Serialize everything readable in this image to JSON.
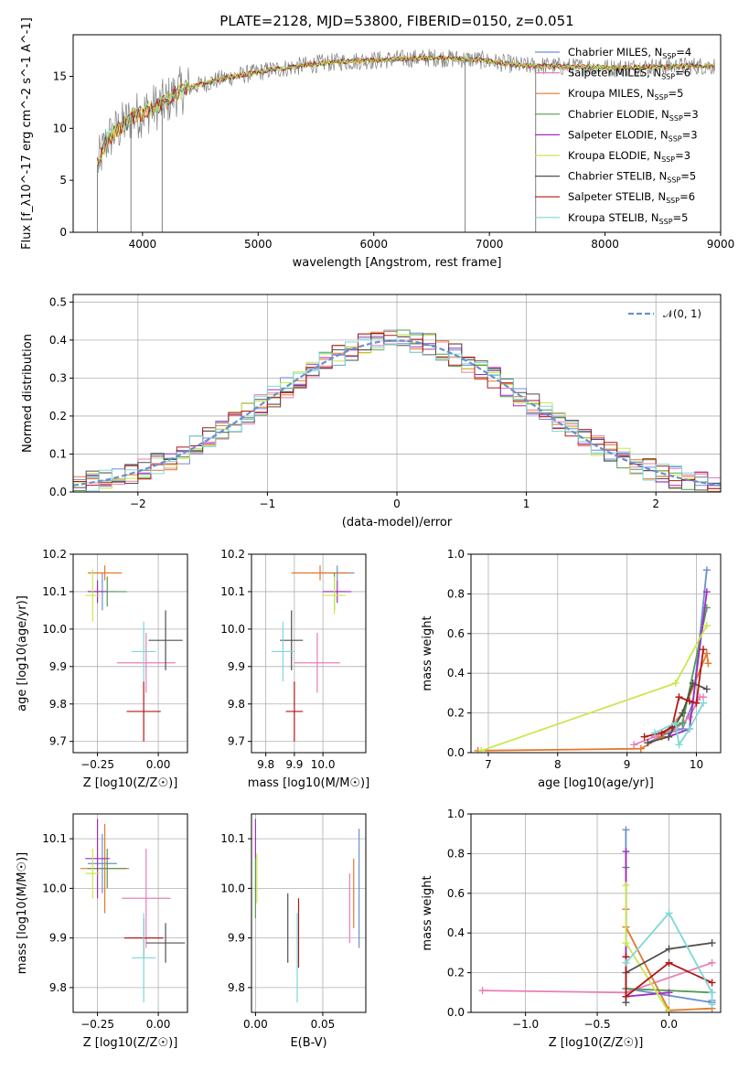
{
  "figure_title": "PLATE=2128, MJD=53800, FIBERID=0150, z=0.051",
  "colors": {
    "cm": "#6a8fd0",
    "sm": "#e87fb4",
    "km": "#e3782a",
    "ce": "#549a54",
    "se": "#a02cc0",
    "ke": "#c8e84e",
    "cs": "#505050",
    "ss": "#b01818",
    "ks": "#7dd8d8",
    "spec": "#808080",
    "grid": "#b0b0b0"
  },
  "chart_data": [
    {
      "id": "spectrum",
      "type": "line",
      "xlabel": "wavelength [Angstrom, rest frame]",
      "ylabel": "Flux [f_λ10^-17 erg cm^-2 s^-1 A^-1]",
      "xlim": [
        3400,
        9000
      ],
      "ylim": [
        0,
        19
      ],
      "xticks": [
        4000,
        5000,
        6000,
        7000,
        8000,
        9000
      ],
      "yticks": [
        0,
        5,
        10,
        15
      ],
      "grid": false,
      "legend_placement": "right",
      "legend": [
        {
          "label": "Chabrier MILES, N_SSP=4",
          "color": "cm"
        },
        {
          "label": "Salpeter MILES, N_SSP=6",
          "color": "sm"
        },
        {
          "label": "Kroupa MILES, N_SSP=5",
          "color": "km"
        },
        {
          "label": "Chabrier ELODIE, N_SSP=3",
          "color": "ce"
        },
        {
          "label": "Salpeter ELODIE, N_SSP=3",
          "color": "se"
        },
        {
          "label": "Kroupa ELODIE, N_SSP=3",
          "color": "ke"
        },
        {
          "label": "Chabrier STELIB, N_SSP=5",
          "color": "cs"
        },
        {
          "label": "Salpeter STELIB, N_SSP=6",
          "color": "ss"
        },
        {
          "label": "Kroupa STELIB, N_SSP=5",
          "color": "ks"
        }
      ],
      "continuum": {
        "x": [
          3610,
          3700,
          3800,
          3900,
          4000,
          4100,
          4200,
          4300,
          4500,
          4700,
          4900,
          5100,
          5300,
          5500,
          5700,
          5900,
          6100,
          6300,
          6500,
          6700,
          6900,
          7100,
          7300,
          7500,
          7700,
          7900,
          8100,
          8300,
          8500,
          8700,
          8950
        ],
        "y": [
          6.5,
          9,
          10,
          11,
          11.5,
          12,
          12.5,
          13.5,
          14.2,
          14.8,
          15.2,
          15.6,
          15.9,
          16.2,
          16.4,
          16.5,
          16.6,
          16.7,
          16.8,
          16.7,
          16.6,
          16.3,
          16.0,
          16.0,
          15.9,
          15.9,
          15.8,
          15.9,
          15.9,
          16.0,
          16.0
        ]
      }
    },
    {
      "id": "residuals",
      "type": "histogram",
      "xlabel": "(data-model)/error",
      "ylabel": "Normed distribution",
      "xlim": [
        -2.5,
        2.5
      ],
      "ylim": [
        0,
        0.52
      ],
      "xticks": [
        -2,
        -1,
        0,
        1,
        2
      ],
      "yticks": [
        0.0,
        0.1,
        0.2,
        0.3,
        0.4,
        0.5
      ],
      "grid": true,
      "legend_placement": "top-right",
      "legend": [
        {
          "label": "𝒩(0, 1)",
          "color": "cm",
          "dash": true
        }
      ],
      "bin_width": 0.1
    },
    {
      "id": "age_vs_Z",
      "type": "scatter",
      "xlabel": "Z [log10(Z/Z☉)]",
      "ylabel": "age [log10(age/yr)]",
      "xlim": [
        -0.35,
        0.12
      ],
      "ylim": [
        9.67,
        10.2
      ],
      "xticks": [
        -0.25,
        0.0
      ],
      "xtick_labels": [
        "−0.25",
        "0.00"
      ],
      "yticks": [
        9.7,
        9.8,
        9.9,
        10.0,
        10.1,
        10.2
      ],
      "grid": true,
      "points": [
        {
          "c": "cm",
          "x": -0.23,
          "y": 10.1,
          "xe": 0.06,
          "ye": 0.05
        },
        {
          "c": "sm",
          "x": -0.05,
          "y": 9.91,
          "xe": 0.12,
          "ye": 0.08
        },
        {
          "c": "km",
          "x": -0.22,
          "y": 10.15,
          "xe": 0.07,
          "ye": 0.02
        },
        {
          "c": "ce",
          "x": -0.21,
          "y": 10.1,
          "xe": 0.08,
          "ye": 0.04
        },
        {
          "c": "se",
          "x": -0.25,
          "y": 10.1,
          "xe": 0.04,
          "ye": 0.03
        },
        {
          "c": "ke",
          "x": -0.27,
          "y": 10.09,
          "xe": 0.03,
          "ye": 0.07
        },
        {
          "c": "cs",
          "x": 0.03,
          "y": 9.97,
          "xe": 0.07,
          "ye": 0.08
        },
        {
          "c": "ss",
          "x": -0.06,
          "y": 9.78,
          "xe": 0.07,
          "ye": 0.08
        },
        {
          "c": "ks",
          "x": -0.06,
          "y": 9.94,
          "xe": 0.05,
          "ye": 0.08
        }
      ]
    },
    {
      "id": "age_vs_mass",
      "type": "scatter",
      "xlabel": "mass [log10(M/M☉)]",
      "ylabel": "",
      "xlim": [
        9.75,
        10.15
      ],
      "ylim": [
        9.67,
        10.2
      ],
      "xticks": [
        9.8,
        9.9,
        10.0
      ],
      "xtick_labels": [
        "9.8",
        "9.9",
        "10.0"
      ],
      "yticks": [
        9.7,
        9.8,
        9.9,
        10.0,
        10.1,
        10.2
      ],
      "grid": true,
      "points": [
        {
          "c": "cm",
          "x": 10.05,
          "y": 10.15,
          "xe": 0.06,
          "ye": 0.02
        },
        {
          "c": "sm",
          "x": 9.98,
          "y": 9.91,
          "xe": 0.08,
          "ye": 0.08
        },
        {
          "c": "km",
          "x": 9.99,
          "y": 10.15,
          "xe": 0.1,
          "ye": 0.02
        },
        {
          "c": "ce",
          "x": 10.04,
          "y": 10.1,
          "xe": 0.04,
          "ye": 0.05
        },
        {
          "c": "se",
          "x": 10.05,
          "y": 10.1,
          "xe": 0.05,
          "ye": 0.03
        },
        {
          "c": "ke",
          "x": 10.04,
          "y": 10.09,
          "xe": 0.04,
          "ye": 0.05
        },
        {
          "c": "cs",
          "x": 9.89,
          "y": 9.97,
          "xe": 0.04,
          "ye": 0.08
        },
        {
          "c": "ss",
          "x": 9.9,
          "y": 9.78,
          "xe": 0.03,
          "ye": 0.08
        },
        {
          "c": "ks",
          "x": 9.86,
          "y": 9.94,
          "xe": 0.04,
          "ye": 0.08
        }
      ]
    },
    {
      "id": "weight_vs_age",
      "type": "line",
      "xlabel": "age  [log10(age/yr)]",
      "ylabel": "mass weight",
      "xlim": [
        6.75,
        10.35
      ],
      "ylim": [
        0,
        1
      ],
      "xticks": [
        7,
        8,
        9,
        10
      ],
      "yticks": [
        0.0,
        0.2,
        0.4,
        0.6,
        0.8,
        1.0
      ],
      "grid": true,
      "series": [
        {
          "c": "cm",
          "x": [
            9.3,
            9.6,
            9.8,
            9.95,
            10.15
          ],
          "y": [
            0.05,
            0.1,
            0.12,
            0.25,
            0.92
          ]
        },
        {
          "c": "sm",
          "x": [
            9.1,
            9.4,
            9.7,
            9.9,
            10.05,
            10.1
          ],
          "y": [
            0.04,
            0.08,
            0.12,
            0.18,
            0.28,
            0.28
          ]
        },
        {
          "c": "km",
          "x": [
            6.85,
            9.2,
            9.5,
            9.8,
            10.15,
            10.17
          ],
          "y": [
            0.01,
            0.02,
            0.08,
            0.2,
            0.5,
            0.45
          ]
        },
        {
          "c": "ce",
          "x": [
            9.5,
            9.8,
            10.15
          ],
          "y": [
            0.1,
            0.15,
            0.73
          ]
        },
        {
          "c": "se",
          "x": [
            9.6,
            9.9,
            10.15
          ],
          "y": [
            0.08,
            0.12,
            0.81
          ]
        },
        {
          "c": "ke",
          "x": [
            6.9,
            9.7,
            10.15
          ],
          "y": [
            0.01,
            0.35,
            0.64
          ]
        },
        {
          "c": "cs",
          "x": [
            9.3,
            9.6,
            9.8,
            9.95,
            10.15
          ],
          "y": [
            0.05,
            0.08,
            0.2,
            0.35,
            0.32
          ]
        },
        {
          "c": "ss",
          "x": [
            9.25,
            9.5,
            9.65,
            9.75,
            9.9,
            10.0,
            10.1
          ],
          "y": [
            0.08,
            0.1,
            0.13,
            0.28,
            0.26,
            0.25,
            0.52
          ]
        },
        {
          "c": "ks",
          "x": [
            9.4,
            9.7,
            9.75,
            9.9,
            10.1
          ],
          "y": [
            0.1,
            0.15,
            0.04,
            0.12,
            0.25
          ]
        }
      ]
    },
    {
      "id": "mass_vs_Z",
      "type": "scatter",
      "xlabel": "Z [log10(Z/Z☉)]",
      "ylabel": "mass [log10(M/M☉)]",
      "xlim": [
        -0.35,
        0.12
      ],
      "ylim": [
        9.75,
        10.15
      ],
      "xticks": [
        -0.25,
        0.0
      ],
      "xtick_labels": [
        "−0.25",
        "0.00"
      ],
      "yticks": [
        9.8,
        9.9,
        10.0,
        10.1
      ],
      "grid": true,
      "points": [
        {
          "c": "cm",
          "x": -0.23,
          "y": 10.05,
          "xe": 0.06,
          "ye": 0.06
        },
        {
          "c": "sm",
          "x": -0.05,
          "y": 9.98,
          "xe": 0.1,
          "ye": 0.1
        },
        {
          "c": "km",
          "x": -0.22,
          "y": 10.04,
          "xe": 0.1,
          "ye": 0.09
        },
        {
          "c": "ce",
          "x": -0.21,
          "y": 10.04,
          "xe": 0.08,
          "ye": 0.04
        },
        {
          "c": "se",
          "x": -0.25,
          "y": 10.06,
          "xe": 0.05,
          "ye": 0.08
        },
        {
          "c": "ke",
          "x": -0.27,
          "y": 10.03,
          "xe": 0.03,
          "ye": 0.05
        },
        {
          "c": "cs",
          "x": 0.03,
          "y": 9.89,
          "xe": 0.08,
          "ye": 0.04
        },
        {
          "c": "ss",
          "x": -0.06,
          "y": 9.9,
          "xe": 0.08,
          "ye": 0.04
        },
        {
          "c": "ks",
          "x": -0.06,
          "y": 9.86,
          "xe": 0.05,
          "ye": 0.09
        }
      ]
    },
    {
      "id": "mass_vs_ebv",
      "type": "scatter",
      "xlabel": "E(B-V)",
      "ylabel": "",
      "xlim": [
        -0.003,
        0.082
      ],
      "ylim": [
        9.75,
        10.15
      ],
      "xticks": [
        0.0,
        0.05
      ],
      "xtick_labels": [
        "0.00",
        "0.05"
      ],
      "yticks": [
        9.8,
        9.9,
        10.0,
        10.1
      ],
      "grid": true,
      "points": [
        {
          "c": "cm",
          "x": 0.077,
          "y": 10.0,
          "xe": 0,
          "ye": 0.12
        },
        {
          "c": "sm",
          "x": 0.07,
          "y": 9.96,
          "xe": 0,
          "ye": 0.07
        },
        {
          "c": "km",
          "x": 0.073,
          "y": 9.99,
          "xe": 0,
          "ye": 0.07
        },
        {
          "c": "ce",
          "x": 0.0,
          "y": 10.0,
          "xe": 0,
          "ye": 0.06
        },
        {
          "c": "se",
          "x": 0.0,
          "y": 10.1,
          "xe": 0,
          "ye": 0.04
        },
        {
          "c": "ke",
          "x": 0.001,
          "y": 10.02,
          "xe": 0,
          "ye": 0.05
        },
        {
          "c": "cs",
          "x": 0.024,
          "y": 9.92,
          "xe": 0,
          "ye": 0.07
        },
        {
          "c": "ss",
          "x": 0.032,
          "y": 9.91,
          "xe": 0,
          "ye": 0.07
        },
        {
          "c": "ks",
          "x": 0.031,
          "y": 9.86,
          "xe": 0,
          "ye": 0.09
        }
      ]
    },
    {
      "id": "weight_vs_Z",
      "type": "line",
      "xlabel": "Z [log10(Z/Z☉)]",
      "ylabel": "mass weight",
      "xlim": [
        -1.38,
        0.36
      ],
      "ylim": [
        0,
        1
      ],
      "xticks": [
        -1.0,
        -0.5,
        0.0
      ],
      "xtick_labels": [
        "−1.0",
        "−0.5",
        "0.0"
      ],
      "yticks": [
        0.0,
        0.2,
        0.4,
        0.6,
        0.8,
        1.0
      ],
      "grid": true,
      "series": [
        {
          "c": "cm",
          "x": [
            -0.3,
            -0.3,
            0.3,
            0.3
          ],
          "y": [
            0.92,
            0.12,
            0.05,
            0.06
          ]
        },
        {
          "c": "sm",
          "x": [
            -1.3,
            -0.3,
            0.3
          ],
          "y": [
            0.11,
            0.1,
            0.25
          ]
        },
        {
          "c": "km",
          "x": [
            -0.3,
            -0.3,
            0.0,
            0.3
          ],
          "y": [
            0.52,
            0.43,
            0.01,
            0.02
          ]
        },
        {
          "c": "ce",
          "x": [
            -0.3,
            -0.3,
            0.3
          ],
          "y": [
            0.73,
            0.12,
            0.1
          ]
        },
        {
          "c": "se",
          "x": [
            -0.3,
            -0.3,
            0.0
          ],
          "y": [
            0.81,
            0.08,
            0.1
          ]
        },
        {
          "c": "ke",
          "x": [
            -0.3,
            -0.3,
            0.0
          ],
          "y": [
            0.64,
            0.35,
            0.0
          ]
        },
        {
          "c": "cs",
          "x": [
            -0.3,
            -0.3,
            0.0,
            0.3
          ],
          "y": [
            0.05,
            0.2,
            0.32,
            0.35
          ]
        },
        {
          "c": "ss",
          "x": [
            -0.3,
            -0.3,
            0.0,
            0.3
          ],
          "y": [
            0.28,
            0.08,
            0.25,
            0.15
          ]
        },
        {
          "c": "ks",
          "x": [
            -0.3,
            0.0,
            0.3,
            0.3
          ],
          "y": [
            0.25,
            0.5,
            0.1,
            0.04
          ]
        }
      ]
    }
  ]
}
